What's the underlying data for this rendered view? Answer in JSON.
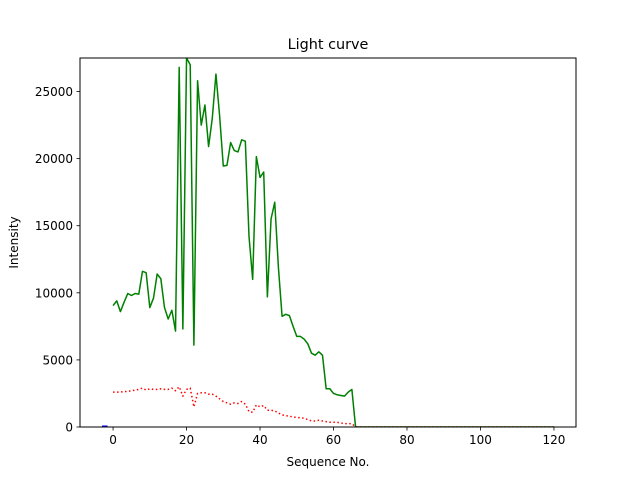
{
  "chart_data": {
    "type": "line",
    "title": "Light curve",
    "xlabel": "Sequence No.",
    "ylabel": "Intensity",
    "xlim": [
      -9,
      126
    ],
    "ylim": [
      0,
      27500
    ],
    "xticks": [
      0,
      20,
      40,
      60,
      80,
      100,
      120
    ],
    "yticks": [
      0,
      5000,
      10000,
      15000,
      20000,
      25000
    ],
    "grid": false,
    "series": [
      {
        "color": "#008000",
        "style": "solid",
        "x": [
          0,
          1,
          2,
          3,
          4,
          5,
          6,
          7,
          8,
          9,
          10,
          11,
          12,
          13,
          14,
          15,
          16,
          17,
          18,
          19,
          20,
          21,
          22,
          23,
          24,
          25,
          26,
          27,
          28,
          29,
          30,
          31,
          32,
          33,
          34,
          35,
          36,
          37,
          38,
          39,
          40,
          41,
          42,
          43,
          44,
          45,
          46,
          47,
          48,
          49,
          50,
          51,
          52,
          53,
          54,
          55,
          56,
          57,
          58,
          59,
          60,
          61,
          62,
          63,
          64,
          65,
          66,
          67,
          68,
          69,
          70,
          75,
          80,
          85,
          90,
          95,
          100,
          105,
          110,
          115,
          120
        ],
        "y": [
          9050,
          9400,
          8600,
          9300,
          9950,
          9800,
          9950,
          9900,
          11600,
          11500,
          8900,
          9600,
          11400,
          11050,
          8900,
          8050,
          8700,
          7150,
          26800,
          7300,
          27500,
          27000,
          6100,
          25800,
          22500,
          24000,
          20900,
          23000,
          26300,
          23200,
          19450,
          19500,
          21200,
          20600,
          20500,
          21400,
          21300,
          14200,
          11000,
          20150,
          18600,
          19000,
          9700,
          15500,
          16750,
          11900,
          8250,
          8400,
          8300,
          7500,
          6750,
          6750,
          6550,
          6200,
          5500,
          5350,
          5600,
          5350,
          2850,
          2850,
          2500,
          2400,
          2350,
          2300,
          2600,
          2800,
          0,
          0,
          0,
          0,
          0,
          0,
          0,
          0,
          0,
          0,
          0,
          0,
          0,
          0,
          0
        ]
      },
      {
        "color": "#ff0000",
        "style": "dotted",
        "x": [
          0,
          1,
          2,
          3,
          4,
          5,
          6,
          7,
          8,
          9,
          10,
          11,
          12,
          13,
          14,
          15,
          16,
          17,
          18,
          19,
          20,
          21,
          22,
          23,
          24,
          25,
          26,
          27,
          28,
          29,
          30,
          31,
          32,
          33,
          34,
          35,
          36,
          37,
          38,
          39,
          40,
          41,
          42,
          43,
          44,
          45,
          46,
          47,
          48,
          49,
          50,
          51,
          52,
          53,
          54,
          55,
          56,
          57,
          58,
          59,
          60,
          61,
          62,
          63,
          64,
          65,
          66,
          67,
          68,
          69,
          70,
          75,
          80,
          85,
          90,
          95,
          100,
          105,
          110,
          115,
          120
        ],
        "y": [
          2600,
          2600,
          2600,
          2650,
          2650,
          2700,
          2750,
          2800,
          2900,
          2750,
          2850,
          2800,
          2800,
          2850,
          2800,
          2800,
          2900,
          2700,
          3000,
          2300,
          2800,
          2900,
          1500,
          2500,
          2550,
          2550,
          2450,
          2450,
          2300,
          2100,
          1900,
          1800,
          1700,
          1800,
          1750,
          1900,
          1700,
          1150,
          1100,
          1650,
          1500,
          1600,
          1250,
          1250,
          1200,
          1050,
          900,
          850,
          800,
          750,
          700,
          700,
          650,
          550,
          450,
          450,
          500,
          450,
          400,
          350,
          350,
          350,
          300,
          250,
          250,
          250,
          0,
          0,
          0,
          0,
          0,
          0,
          0,
          0,
          0,
          0,
          0,
          0,
          0,
          0,
          0
        ]
      },
      {
        "color": "#0000ff",
        "style": "solid",
        "x": [
          -3,
          -1.5
        ],
        "y": [
          0,
          0
        ]
      }
    ]
  }
}
